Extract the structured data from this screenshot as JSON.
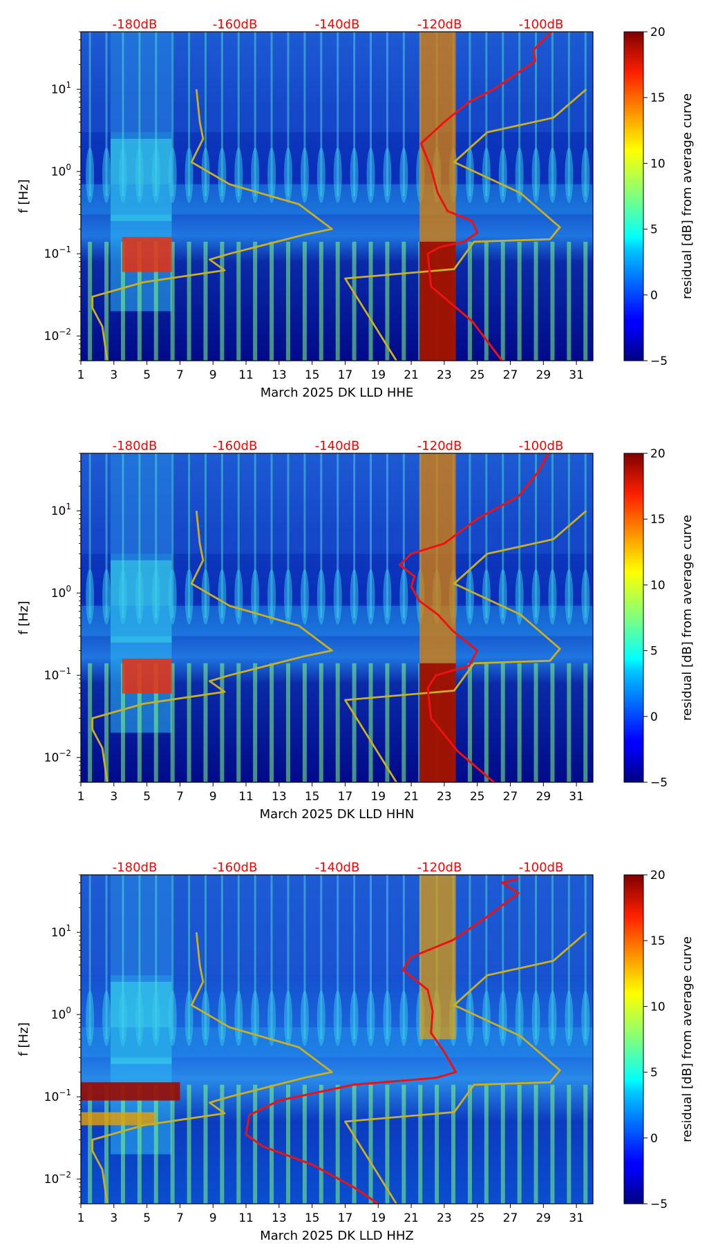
{
  "chart_data": [
    {
      "type": "heatmap",
      "title": "",
      "xlabel": "March 2025 DK LLD  HHE",
      "ylabel": "f [Hz]",
      "x_ticks": [
        "1",
        "3",
        "5",
        "7",
        "9",
        "11",
        "13",
        "15",
        "17",
        "19",
        "21",
        "23",
        "25",
        "27",
        "29",
        "31"
      ],
      "xlim": [
        1,
        32
      ],
      "ylim": [
        0.005,
        50
      ],
      "y_ticks": [
        "10-2",
        "10-1",
        "100",
        "101"
      ],
      "colorbar_label": "residual [dB] from average curve",
      "colorbar_range": [
        -5,
        20
      ],
      "colorbar_ticks": [
        "20",
        "15",
        "10",
        "5",
        "0",
        "−5"
      ],
      "top_db_labels": [
        "-180dB",
        "-160dB",
        "-140dB",
        "-120dB",
        "-100dB"
      ],
      "series": [
        {
          "name": "reference model (yellow)",
          "x": [
            8,
            8.2,
            8.4,
            7.7,
            10,
            14.2,
            16.2,
            14.5,
            10,
            8.8,
            9.7,
            4.8,
            1.7,
            1.7,
            2.3,
            2.6
          ],
          "y": [
            10,
            4,
            2.5,
            1.3,
            0.7,
            0.4,
            0.2,
            0.17,
            0.1,
            0.085,
            0.063,
            0.045,
            0.03,
            0.022,
            0.013,
            0.005
          ]
        },
        {
          "name": "reference model right (yellow)",
          "x": [
            31.6,
            29.6,
            25.6,
            23.6,
            27.6,
            30,
            29.4,
            24.8,
            23.6,
            17,
            17,
            20.1
          ],
          "y": [
            10,
            4.5,
            3,
            1.3,
            0.55,
            0.21,
            0.15,
            0.14,
            0.065,
            0.05,
            0.05,
            0.005
          ]
        },
        {
          "name": "PSD level (red)",
          "x": [
            29.5,
            28.4,
            28.5,
            26,
            24.5,
            23,
            21.6,
            22.2,
            22.6,
            23.2,
            24.7,
            25,
            24.2,
            22.7,
            22,
            22.2,
            24.7,
            26.5
          ],
          "y": [
            50,
            30,
            22,
            10,
            7,
            4,
            2.2,
            1.1,
            0.55,
            0.33,
            0.25,
            0.18,
            0.14,
            0.12,
            0.1,
            0.04,
            0.015,
            0.005
          ]
        }
      ]
    },
    {
      "type": "heatmap",
      "title": "",
      "xlabel": "March 2025 DK LLD  HHN",
      "ylabel": "f [Hz]",
      "x_ticks": [
        "1",
        "3",
        "5",
        "7",
        "9",
        "11",
        "13",
        "15",
        "17",
        "19",
        "21",
        "23",
        "25",
        "27",
        "29",
        "31"
      ],
      "xlim": [
        1,
        32
      ],
      "ylim": [
        0.005,
        50
      ],
      "y_ticks": [
        "10-2",
        "10-1",
        "100",
        "101"
      ],
      "colorbar_label": "residual [dB] from average curve",
      "colorbar_range": [
        -5,
        20
      ],
      "colorbar_ticks": [
        "20",
        "15",
        "10",
        "5",
        "0",
        "−5"
      ],
      "top_db_labels": [
        "-180dB",
        "-160dB",
        "-140dB",
        "-120dB",
        "-100dB"
      ],
      "series": [
        {
          "name": "reference model (yellow)",
          "x": [
            8,
            8.2,
            8.4,
            7.7,
            10,
            14.2,
            16.2,
            14.5,
            10,
            8.8,
            9.7,
            4.8,
            1.7,
            1.7,
            2.3,
            2.6
          ],
          "y": [
            10,
            4,
            2.5,
            1.3,
            0.7,
            0.4,
            0.2,
            0.17,
            0.1,
            0.085,
            0.063,
            0.045,
            0.03,
            0.022,
            0.013,
            0.005
          ]
        },
        {
          "name": "reference model right (yellow)",
          "x": [
            31.6,
            29.6,
            25.6,
            23.6,
            27.6,
            30,
            29.4,
            24.8,
            23.6,
            17,
            17,
            20.1
          ],
          "y": [
            10,
            4.5,
            3,
            1.3,
            0.55,
            0.21,
            0.15,
            0.14,
            0.065,
            0.05,
            0.05,
            0.005
          ]
        },
        {
          "name": "PSD level (red)",
          "x": [
            29.3,
            28.7,
            27.5,
            25,
            23,
            21,
            20.3,
            21.2,
            21,
            21.5,
            22.6,
            23.5,
            25,
            24.5,
            22.5,
            22,
            22.2,
            23.8,
            26
          ],
          "y": [
            50,
            30,
            15,
            8,
            4,
            3,
            2.2,
            1.6,
            1.2,
            0.8,
            0.55,
            0.35,
            0.2,
            0.13,
            0.1,
            0.07,
            0.03,
            0.012,
            0.005
          ]
        }
      ]
    },
    {
      "type": "heatmap",
      "title": "",
      "xlabel": "March 2025 DK LLD  HHZ",
      "ylabel": "f [Hz]",
      "x_ticks": [
        "1",
        "3",
        "5",
        "7",
        "9",
        "11",
        "13",
        "15",
        "17",
        "19",
        "21",
        "23",
        "25",
        "27",
        "29",
        "31"
      ],
      "xlim": [
        1,
        32
      ],
      "ylim": [
        0.005,
        50
      ],
      "y_ticks": [
        "10-2",
        "10-1",
        "100",
        "101"
      ],
      "colorbar_label": "residual [dB] from average curve",
      "colorbar_range": [
        -5,
        20
      ],
      "colorbar_ticks": [
        "20",
        "15",
        "10",
        "5",
        "0",
        "−5"
      ],
      "top_db_labels": [
        "-180dB",
        "-160dB",
        "-140dB",
        "-120dB",
        "-100dB"
      ],
      "series": [
        {
          "name": "reference model (yellow)",
          "x": [
            8,
            8.2,
            8.4,
            7.7,
            10,
            14.2,
            16.2,
            14.5,
            10,
            8.8,
            9.7,
            4.8,
            1.7,
            1.7,
            2.3,
            2.6
          ],
          "y": [
            10,
            4,
            2.5,
            1.3,
            0.7,
            0.4,
            0.2,
            0.17,
            0.1,
            0.085,
            0.063,
            0.045,
            0.03,
            0.022,
            0.013,
            0.005
          ]
        },
        {
          "name": "reference model right (yellow)",
          "x": [
            31.6,
            29.6,
            25.6,
            23.6,
            27.6,
            30,
            29.4,
            24.8,
            23.6,
            17,
            17,
            20.1
          ],
          "y": [
            10,
            4.5,
            3,
            1.3,
            0.55,
            0.21,
            0.15,
            0.14,
            0.065,
            0.05,
            0.05,
            0.005
          ]
        },
        {
          "name": "PSD level (red)",
          "x": [
            27.5,
            26.5,
            27.5,
            25.5,
            23.5,
            21,
            20.5,
            22,
            22.3,
            22.2,
            23,
            23.7,
            22.5,
            17.5,
            13,
            11.2,
            11,
            12,
            15,
            17.5,
            19
          ],
          "y": [
            45,
            40,
            30,
            15,
            8,
            5,
            3.5,
            2,
            1.1,
            0.6,
            0.35,
            0.2,
            0.17,
            0.14,
            0.09,
            0.06,
            0.035,
            0.025,
            0.015,
            0.008,
            0.005
          ]
        }
      ]
    }
  ]
}
